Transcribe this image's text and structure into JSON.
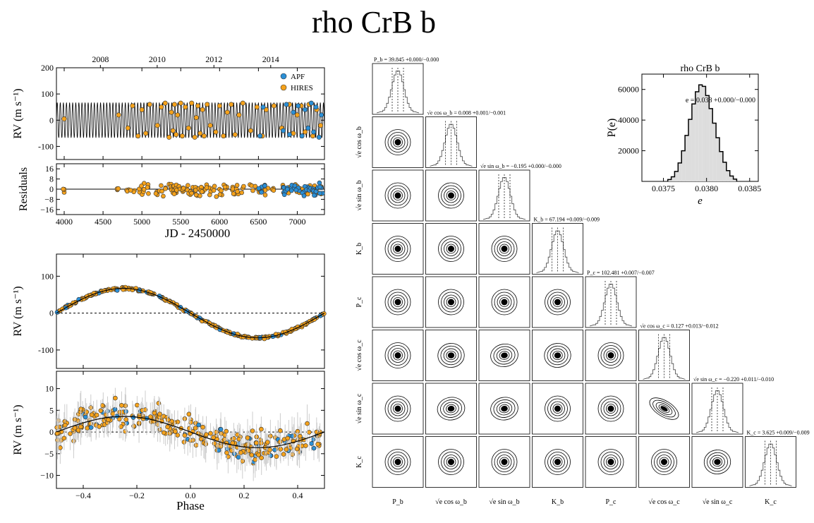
{
  "title": "rho CrB b",
  "colors": {
    "apf": "#2b8fd6",
    "hires": "#f5a21b",
    "model": "#000000",
    "hist_fill": "#dddddd"
  },
  "chart_data": [
    {
      "id": "rv-timeseries",
      "type": "scatter",
      "title": "",
      "xlabel": "",
      "ylabel": "RV (m s⁻¹)",
      "xlim": [
        3900,
        7350
      ],
      "ylim": [
        -150,
        200
      ],
      "xticks": [
        4000,
        4500,
        5000,
        5500,
        6000,
        6500,
        7000
      ],
      "yticks": [
        -100,
        0,
        100,
        200
      ],
      "top_axis_ticks": [
        "2008",
        "2010",
        "2012",
        "2014"
      ],
      "top_axis_jd": [
        4466,
        5197,
        5927,
        6658
      ],
      "legend": {
        "placement": "top-right",
        "entries": [
          "APF",
          "HIRES"
        ]
      },
      "model": {
        "period": 39.845,
        "semi_amplitude": 67.194
      },
      "series": [
        {
          "name": "HIRES",
          "x": [
            4000,
            4700,
            4820,
            4880,
            4950,
            5000,
            5050,
            5100,
            5200,
            5250,
            5300,
            5350,
            5380,
            5400,
            5420,
            5440,
            5460,
            5500,
            5520,
            5560,
            5600,
            5640,
            5680,
            5700,
            5720,
            5750,
            5780,
            5800,
            5840,
            5880,
            5950,
            6000,
            6050,
            6100,
            6150,
            6200,
            6250,
            6300,
            6400,
            6480,
            6550,
            6600,
            6700,
            6800,
            6900,
            6950,
            7000,
            7050,
            7100,
            7150,
            7200,
            7250,
            7300
          ],
          "y": [
            5,
            20,
            -30,
            55,
            -60,
            40,
            -50,
            60,
            -20,
            50,
            65,
            -65,
            30,
            -40,
            60,
            -55,
            20,
            65,
            -60,
            50,
            -30,
            65,
            -65,
            10,
            55,
            -50,
            40,
            -60,
            60,
            -20,
            -45,
            55,
            -60,
            30,
            60,
            -55,
            20,
            65,
            -40,
            50,
            -60,
            40,
            55,
            -30,
            60,
            -50,
            20,
            55,
            -45,
            60,
            -60,
            40,
            -20
          ]
        },
        {
          "name": "APF",
          "x": [
            6520,
            6560,
            6820,
            6860,
            6900,
            6950,
            7010,
            7060,
            7100,
            7140,
            7180,
            7210,
            7240,
            7280,
            7310
          ],
          "y": [
            -60,
            50,
            -40,
            60,
            -55,
            30,
            55,
            -60,
            40,
            -30,
            65,
            -45,
            50,
            -65,
            20
          ]
        }
      ]
    },
    {
      "id": "rv-residuals",
      "type": "scatter",
      "title": "",
      "xlabel": "JD - 2450000",
      "ylabel": "Residuals",
      "xlim": [
        3900,
        7350
      ],
      "ylim": [
        -20,
        20
      ],
      "xticks": [
        4000,
        4500,
        5000,
        5500,
        6000,
        6500,
        7000
      ],
      "yticks": [
        -16,
        -8,
        0,
        8,
        16
      ],
      "yticklabels_shown": [
        "16",
        "8",
        "0",
        "−8",
        "−16"
      ]
    },
    {
      "id": "phase-folded-b",
      "type": "scatter",
      "title": "",
      "xlabel": "",
      "ylabel": "RV (m s⁻¹)",
      "xlim": [
        -0.5,
        0.5
      ],
      "ylim": [
        -150,
        160
      ],
      "yticks": [
        -100,
        0,
        100
      ],
      "model": {
        "shape": "sine",
        "amplitude": 67,
        "phase_of_max": -0.25
      }
    },
    {
      "id": "phase-folded-c",
      "type": "scatter",
      "title": "",
      "xlabel": "Phase",
      "ylabel": "RV (m s⁻¹)",
      "xlim": [
        -0.5,
        0.5
      ],
      "ylim": [
        -13,
        14
      ],
      "xticks": [
        -0.4,
        -0.2,
        0.0,
        0.2,
        0.4
      ],
      "xticklabels": [
        "−0.4",
        "−0.2",
        "0.0",
        "0.2",
        "0.4"
      ],
      "yticks": [
        -10,
        -5,
        0,
        5,
        10
      ],
      "yticklabels": [
        "−10",
        "−5",
        "0",
        "5",
        "10"
      ],
      "model": {
        "shape": "sine",
        "amplitude": 3.6,
        "phase_of_max": -0.25
      }
    },
    {
      "id": "corner-plot",
      "type": "scatter",
      "title": "",
      "params": [
        {
          "axis_label": "P_b",
          "hist_title": "P_b = 39.845 +0.000/−0.000"
        },
        {
          "axis_label": "√e cos ω_b",
          "hist_title": "√e cos ω_b = 0.008 +0.001/−0.001"
        },
        {
          "axis_label": "√e sin ω_b",
          "hist_title": "√e sin ω_b = −0.195 +0.000/−0.000"
        },
        {
          "axis_label": "K_b",
          "hist_title": "K_b = 67.194 +0.009/−0.009"
        },
        {
          "axis_label": "P_c",
          "hist_title": "P_c = 102.481 +0.007/−0.007"
        },
        {
          "axis_label": "√e cos ω_c",
          "hist_title": "√e cos ω_c = 0.127 +0.013/−0.012"
        },
        {
          "axis_label": "√e sin ω_c",
          "hist_title": "√e sin ω_c = −0.220 +0.011/−0.010"
        },
        {
          "axis_label": "K_c",
          "hist_title": "K_c = 3.625 +0.009/−0.009"
        }
      ],
      "contour_tilt": [
        [
          0,
          0,
          0,
          0,
          0,
          0,
          0
        ],
        [
          0,
          0,
          0,
          0,
          0,
          0,
          0
        ],
        [
          0,
          0,
          0,
          0,
          0,
          0,
          0
        ],
        [
          0,
          0,
          0,
          0,
          0,
          0,
          0
        ],
        [
          0,
          0.1,
          0.2,
          0.1,
          0,
          0,
          0
        ],
        [
          0,
          0.2,
          0.2,
          0,
          0,
          -0.7,
          0
        ],
        [
          0,
          0,
          0,
          0,
          0,
          0,
          0.1
        ]
      ]
    },
    {
      "id": "eccentricity-histogram",
      "type": "bar",
      "title": "rho CrB b",
      "xlabel": "e",
      "ylabel": "P(e)",
      "annotation": "e = 0.038 +0.000/−0.000",
      "xlim": [
        0.03725,
        0.0386
      ],
      "ylim": [
        0,
        70000
      ],
      "xticks": [
        0.0375,
        0.038,
        0.0385
      ],
      "xticklabels": [
        "0.0375",
        "0.0380",
        "0.0385"
      ],
      "yticks": [
        20000,
        40000,
        60000
      ],
      "yticklabels": [
        "20000",
        "40000",
        "60000"
      ],
      "x": [
        0.03757,
        0.03761,
        0.03765,
        0.03769,
        0.03773,
        0.03777,
        0.03781,
        0.03785,
        0.03789,
        0.03793,
        0.03797,
        0.03801,
        0.03805,
        0.03809,
        0.03813,
        0.03817,
        0.03821,
        0.03825,
        0.03829,
        0.03833
      ],
      "values": [
        1200,
        3000,
        6500,
        12000,
        20000,
        30000,
        40500,
        50500,
        58500,
        63000,
        62000,
        56000,
        47500,
        38000,
        28500,
        19500,
        12500,
        7000,
        3500,
        1500
      ]
    }
  ]
}
